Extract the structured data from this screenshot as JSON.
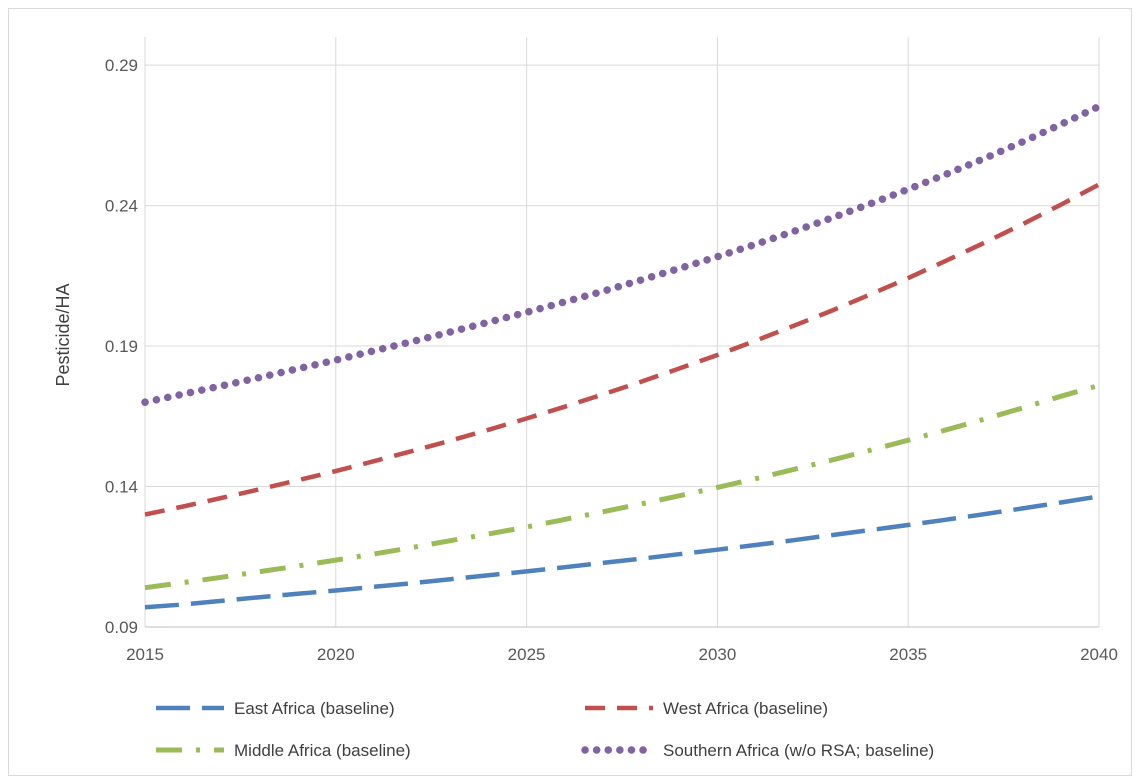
{
  "chart_data": {
    "type": "line",
    "title": "",
    "xlabel": "",
    "ylabel": "Pesticide/HA",
    "xlim": [
      2015,
      2040
    ],
    "ylim": [
      0.09,
      0.3
    ],
    "x_ticks": [
      "2015",
      "2020",
      "2025",
      "2030",
      "2035",
      "2040"
    ],
    "y_ticks": [
      "0.09",
      "0.14",
      "0.19",
      "0.24",
      "0.29"
    ],
    "grid": true,
    "legend_position": "bottom",
    "x": [
      2015,
      2016,
      2017,
      2018,
      2019,
      2020,
      2021,
      2022,
      2023,
      2024,
      2025,
      2026,
      2027,
      2028,
      2029,
      2030,
      2031,
      2032,
      2033,
      2034,
      2035,
      2036,
      2037,
      2038,
      2039,
      2040
    ],
    "series": [
      {
        "name": "East Africa (baseline)",
        "color": "#4f81bd",
        "dash": "long-dash",
        "values": [
          0.097,
          0.098,
          0.0993,
          0.1006,
          0.1018,
          0.103,
          0.1043,
          0.1056,
          0.107,
          0.1084,
          0.1098,
          0.1113,
          0.1128,
          0.1143,
          0.1159,
          0.1175,
          0.1192,
          0.1209,
          0.1227,
          0.1245,
          0.1263,
          0.1282,
          0.1302,
          0.1322,
          0.1343,
          0.1365
        ]
      },
      {
        "name": "West Africa (baseline)",
        "color": "#c0504d",
        "dash": "dash",
        "values": [
          0.13,
          0.1329,
          0.1359,
          0.139,
          0.1422,
          0.1455,
          0.149,
          0.1526,
          0.1563,
          0.1602,
          0.1642,
          0.1684,
          0.1728,
          0.1773,
          0.182,
          0.1868,
          0.1919,
          0.1972,
          0.2026,
          0.2083,
          0.2142,
          0.2204,
          0.2268,
          0.2334,
          0.2403,
          0.2475
        ]
      },
      {
        "name": "Middle Africa (baseline)",
        "color": "#9bbb59",
        "dash": "dash-dot",
        "values": [
          0.104,
          0.1058,
          0.1077,
          0.1097,
          0.1117,
          0.1138,
          0.116,
          0.1183,
          0.1207,
          0.1231,
          0.1256,
          0.1283,
          0.131,
          0.1338,
          0.1367,
          0.1397,
          0.1428,
          0.1461,
          0.1494,
          0.1529,
          0.1565,
          0.1602,
          0.164,
          0.168,
          0.1721,
          0.176
        ]
      },
      {
        "name": "Southern Africa (w/o RSA; baseline)",
        "color": "#8064a2",
        "dash": "dot",
        "values": [
          0.17,
          0.1729,
          0.1758,
          0.1788,
          0.1819,
          0.185,
          0.1883,
          0.1916,
          0.195,
          0.1985,
          0.202,
          0.2057,
          0.2095,
          0.2135,
          0.2176,
          0.2218,
          0.2262,
          0.2308,
          0.2356,
          0.2406,
          0.2458,
          0.2512,
          0.2568,
          0.2627,
          0.2689,
          0.2753
        ]
      }
    ]
  }
}
